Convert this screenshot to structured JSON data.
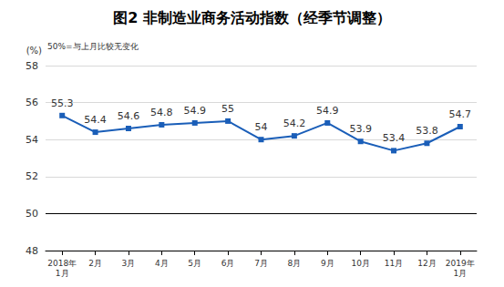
{
  "chart_data": {
    "type": "line",
    "title": "图2 非制造业商务活动指数（经季节调整）",
    "y_label": "(%)",
    "annotation": "50%=与上月比较无变化",
    "categories": [
      "2018年\n1月",
      "2月",
      "3月",
      "4月",
      "5月",
      "6月",
      "7月",
      "8月",
      "9月",
      "10月",
      "11月",
      "12月",
      "2019年\n1月"
    ],
    "values": [
      55.3,
      54.4,
      54.6,
      54.8,
      54.9,
      55.0,
      54.0,
      54.2,
      54.9,
      53.9,
      53.4,
      53.8,
      54.7
    ],
    "color": "#1a5eb8",
    "marker": "square",
    "ylim": [
      48,
      58
    ],
    "yticks": [
      48,
      50,
      52,
      54,
      56,
      58
    ],
    "baseline": 50,
    "grid": true,
    "data_labels": true
  }
}
